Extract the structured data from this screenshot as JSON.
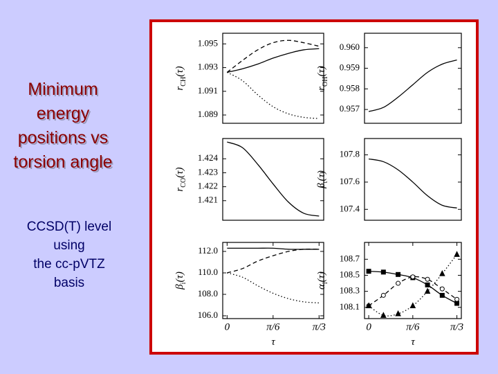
{
  "slide": {
    "heading_lines": [
      "Minimum",
      "energy",
      "positions vs",
      "torsion angle"
    ],
    "note_lines": [
      "CCSD(T) level",
      "using",
      "the cc-pVTZ",
      "basis"
    ]
  },
  "chart_data": [
    {
      "type": "line",
      "ylabel": {
        "symbol": "r",
        "subscript": "CH",
        "argument": "(τ)"
      },
      "x": [
        0,
        0.1745,
        0.3491,
        0.5236,
        0.6981,
        0.8727,
        1.0472
      ],
      "xlim": [
        -0.05,
        1.1
      ],
      "ylim": [
        1.0883,
        1.0959
      ],
      "yticks": [
        1.089,
        1.091,
        1.093,
        1.095
      ],
      "series": [
        {
          "color": "#000000",
          "dash": "dashed",
          "values": [
            1.0926,
            1.0936,
            1.0945,
            1.0951,
            1.0953,
            1.0951,
            1.0948
          ]
        },
        {
          "color": "#000000",
          "dash": "solid",
          "values": [
            1.0926,
            1.0929,
            1.0933,
            1.0938,
            1.0942,
            1.0945,
            1.0946
          ]
        },
        {
          "color": "#000000",
          "dash": "dotted",
          "values": [
            1.0926,
            1.0919,
            1.0907,
            1.0897,
            1.0891,
            1.0888,
            1.0887
          ]
        }
      ]
    },
    {
      "type": "line",
      "ylabel": {
        "symbol": "r",
        "subscript": "OH",
        "argument": "(τ)"
      },
      "x": [
        0,
        0.1745,
        0.3491,
        0.5236,
        0.6981,
        0.8727,
        1.0472
      ],
      "xlim": [
        -0.05,
        1.1
      ],
      "ylim": [
        0.95633,
        0.9607
      ],
      "yticks": [
        {
          "value": 0.957,
          "label": "0.957"
        },
        {
          "value": 0.958,
          "label": "0.958"
        },
        {
          "value": 0.959,
          "label": "0.959"
        },
        {
          "value": 0.96,
          "label": "0.960"
        }
      ],
      "series": [
        {
          "color": "#000000",
          "dash": "solid",
          "values": [
            0.9569,
            0.9571,
            0.9576,
            0.9582,
            0.9588,
            0.9592,
            0.9594
          ]
        }
      ]
    },
    {
      "type": "line",
      "ylabel": {
        "symbol": "r",
        "subscript": "CO",
        "argument": "(τ)"
      },
      "x": [
        0,
        0.1745,
        0.3491,
        0.5236,
        0.6981,
        0.8727,
        1.0472
      ],
      "xlim": [
        -0.05,
        1.1
      ],
      "ylim": [
        1.4196,
        1.42545
      ],
      "yticks": [
        1.421,
        1.422,
        1.423,
        1.424
      ],
      "series": [
        {
          "color": "#000000",
          "dash": "solid",
          "values": [
            1.4252,
            1.4248,
            1.4236,
            1.4222,
            1.4209,
            1.4201,
            1.4199
          ]
        }
      ]
    },
    {
      "type": "line",
      "ylabel": {
        "symbol": "β",
        "subscript": "t",
        "argument": "(τ)"
      },
      "x": [
        0,
        0.1745,
        0.3491,
        0.5236,
        0.6981,
        0.8727,
        1.0472
      ],
      "xlim": [
        -0.05,
        1.1
      ],
      "ylim": [
        107.32,
        107.92
      ],
      "yticks": [
        107.4,
        107.6,
        107.8
      ],
      "series": [
        {
          "color": "#000000",
          "dash": "solid",
          "values": [
            107.77,
            107.75,
            107.69,
            107.6,
            107.5,
            107.43,
            107.41
          ]
        }
      ]
    },
    {
      "type": "line",
      "ylabel": {
        "symbol": "β",
        "subscript": "i",
        "argument": "(τ)"
      },
      "xlabel": "τ",
      "x": [
        0,
        0.1745,
        0.3491,
        0.5236,
        0.6981,
        0.8727,
        1.0472
      ],
      "xlim": [
        -0.05,
        1.1
      ],
      "xticks": [
        0,
        {
          "value": 0.5236,
          "label": "π/6"
        },
        {
          "value": 1.0472,
          "label": "π/3"
        }
      ],
      "ylim": [
        105.74,
        112.84
      ],
      "yticks": [
        {
          "value": 106,
          "label": "106.0"
        },
        {
          "value": 108,
          "label": "108.0"
        },
        {
          "value": 110,
          "label": "110.0"
        },
        {
          "value": 112,
          "label": "112.0"
        }
      ],
      "series": [
        {
          "color": "#000000",
          "dash": "solid",
          "values": [
            112.3,
            112.3,
            112.3,
            112.3,
            112.2,
            112.2,
            112.2
          ]
        },
        {
          "color": "#000000",
          "dash": "dashed",
          "values": [
            110.0,
            110.4,
            111.1,
            111.6,
            112.0,
            112.2,
            112.2
          ]
        },
        {
          "color": "#000000",
          "dash": "dotted",
          "values": [
            110.0,
            109.6,
            108.8,
            108.1,
            107.6,
            107.3,
            107.2
          ]
        }
      ]
    },
    {
      "type": "line",
      "ylabel": {
        "symbol": "α",
        "subscript": "i",
        "argument": "(τ)"
      },
      "xlabel": "τ",
      "x": [
        0,
        0.1745,
        0.3491,
        0.5236,
        0.6981,
        0.8727,
        1.0472
      ],
      "xlim": [
        -0.05,
        1.1
      ],
      "xticks": [
        0,
        {
          "value": 0.5236,
          "label": "π/6"
        },
        {
          "value": 1.0472,
          "label": "π/3"
        }
      ],
      "ylim": [
        107.96,
        108.91
      ],
      "yticks": [
        108.1,
        108.3,
        108.5,
        108.7
      ],
      "series": [
        {
          "color": "#000000",
          "dash": "solid",
          "marker": "square",
          "values": [
            108.55,
            108.54,
            108.51,
            108.47,
            108.38,
            108.25,
            108.15
          ]
        },
        {
          "color": "#000000",
          "dash": "dashed",
          "marker": "circle",
          "values": [
            108.12,
            108.25,
            108.4,
            108.48,
            108.45,
            108.33,
            108.2
          ]
        },
        {
          "color": "#000000",
          "dash": "dotted",
          "marker": "triangle",
          "values": [
            108.12,
            108.0,
            108.02,
            108.12,
            108.3,
            108.52,
            108.76
          ]
        }
      ]
    }
  ]
}
